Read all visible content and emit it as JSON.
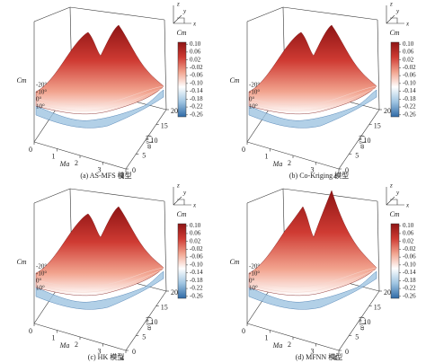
{
  "chart_data": [
    {
      "type": "surface",
      "caption": "(a) AS-MFS 模型",
      "zlabel": "Cm",
      "xlabel": "Ma",
      "ylabel": "α/(°)",
      "xticks": [
        0,
        1,
        2,
        3,
        4
      ],
      "yticks": [
        0,
        5,
        10,
        15,
        20
      ],
      "xlim": [
        0,
        4
      ],
      "ylim": [
        0,
        20
      ],
      "annotations": [
        "-20°",
        "-10°",
        "0°",
        "10°"
      ],
      "axis_icon": {
        "z": "z",
        "y": "y",
        "x": "x"
      },
      "colorbar": {
        "title": "Cm",
        "clim": [
          -0.27,
          0.11
        ],
        "colormap": [
          "#2f6aa6",
          "#9fc5e2",
          "#ffffff",
          "#f2a48f",
          "#cf3b33",
          "#8e1414"
        ],
        "ticks": [
          {
            "value": 0.1,
            "label": "0.10"
          },
          {
            "value": 0.06,
            "label": "0.06"
          },
          {
            "value": 0.02,
            "label": "0.02"
          },
          {
            "value": -0.02,
            "label": "-0.02"
          },
          {
            "value": -0.06,
            "label": "-0.06"
          },
          {
            "value": -0.1,
            "label": "-0.10"
          },
          {
            "value": -0.14,
            "label": "-0.14"
          },
          {
            "value": -0.18,
            "label": "-0.18"
          },
          {
            "value": -0.22,
            "label": "-0.22"
          },
          {
            "value": -0.26,
            "label": "-0.26"
          }
        ]
      }
    },
    {
      "type": "surface",
      "caption": "(b) Co-Kriging 模型",
      "zlabel": "Cm",
      "xlabel": "Ma",
      "ylabel": "α/(°)",
      "xticks": [
        0,
        1,
        2,
        3,
        4
      ],
      "yticks": [
        0,
        5,
        10,
        15,
        20
      ],
      "xlim": [
        0,
        4
      ],
      "ylim": [
        0,
        20
      ],
      "annotations": [
        "-20°",
        "-10°",
        "0°",
        "10°"
      ],
      "axis_icon": {
        "z": "z",
        "y": "y",
        "x": "x"
      },
      "colorbar": {
        "title": "Cm",
        "clim": [
          -0.27,
          0.11
        ],
        "colormap": [
          "#2f6aa6",
          "#9fc5e2",
          "#ffffff",
          "#f2a48f",
          "#cf3b33",
          "#8e1414"
        ],
        "ticks": [
          {
            "value": 0.1,
            "label": "0.10"
          },
          {
            "value": 0.06,
            "label": "0.06"
          },
          {
            "value": 0.02,
            "label": "0.02"
          },
          {
            "value": -0.02,
            "label": "-0.02"
          },
          {
            "value": -0.06,
            "label": "-0.06"
          },
          {
            "value": -0.1,
            "label": "-0.10"
          },
          {
            "value": -0.14,
            "label": "-0.14"
          },
          {
            "value": -0.18,
            "label": "-0.18"
          },
          {
            "value": -0.22,
            "label": "-0.22"
          },
          {
            "value": -0.26,
            "label": "-0.26"
          }
        ]
      }
    },
    {
      "type": "surface",
      "caption": "(c) HK 模型",
      "zlabel": "Cm",
      "xlabel": "Ma",
      "ylabel": "α/(°)",
      "xticks": [
        0,
        1,
        2,
        3,
        4
      ],
      "yticks": [
        0,
        5,
        10,
        15,
        20
      ],
      "xlim": [
        0,
        4
      ],
      "ylim": [
        0,
        20
      ],
      "annotations": [
        "-20°",
        "-10°",
        "0°",
        "10°"
      ],
      "axis_icon": {
        "z": "z",
        "y": "y",
        "x": "x"
      },
      "colorbar": {
        "title": "Cm",
        "clim": [
          -0.27,
          0.11
        ],
        "colormap": [
          "#2f6aa6",
          "#9fc5e2",
          "#ffffff",
          "#f2a48f",
          "#cf3b33",
          "#8e1414"
        ],
        "ticks": [
          {
            "value": 0.1,
            "label": "0.10"
          },
          {
            "value": 0.06,
            "label": "0.06"
          },
          {
            "value": 0.02,
            "label": "0.02"
          },
          {
            "value": -0.02,
            "label": "-0.02"
          },
          {
            "value": -0.06,
            "label": "-0.06"
          },
          {
            "value": -0.1,
            "label": "-0.10"
          },
          {
            "value": -0.14,
            "label": "-0.14"
          },
          {
            "value": -0.18,
            "label": "-0.18"
          },
          {
            "value": -0.22,
            "label": "-0.22"
          },
          {
            "value": -0.26,
            "label": "-0.26"
          }
        ]
      }
    },
    {
      "type": "surface",
      "caption": "(d) MFNN 模型",
      "zlabel": "Cm",
      "xlabel": "Ma",
      "ylabel": "α/(°)",
      "xticks": [
        0,
        1,
        2,
        3,
        4
      ],
      "yticks": [
        0,
        5,
        10,
        15,
        20
      ],
      "xlim": [
        0,
        4
      ],
      "ylim": [
        0,
        20
      ],
      "annotations": [
        "-20°",
        "-10°",
        "0°",
        "10°"
      ],
      "axis_icon": {
        "z": "z",
        "y": "y",
        "x": "x"
      },
      "colorbar": {
        "title": "Cm",
        "clim": [
          -0.27,
          0.11
        ],
        "colormap": [
          "#2f6aa6",
          "#9fc5e2",
          "#ffffff",
          "#f2a48f",
          "#cf3b33",
          "#8e1414"
        ],
        "ticks": [
          {
            "value": 0.1,
            "label": "0.10"
          },
          {
            "value": 0.06,
            "label": "0.06"
          },
          {
            "value": 0.02,
            "label": "0.02"
          },
          {
            "value": -0.02,
            "label": "-0.02"
          },
          {
            "value": -0.06,
            "label": "-0.06"
          },
          {
            "value": -0.1,
            "label": "-0.10"
          },
          {
            "value": -0.14,
            "label": "-0.14"
          },
          {
            "value": -0.18,
            "label": "-0.18"
          },
          {
            "value": -0.22,
            "label": "-0.22"
          },
          {
            "value": -0.26,
            "label": "-0.26"
          }
        ]
      }
    }
  ]
}
